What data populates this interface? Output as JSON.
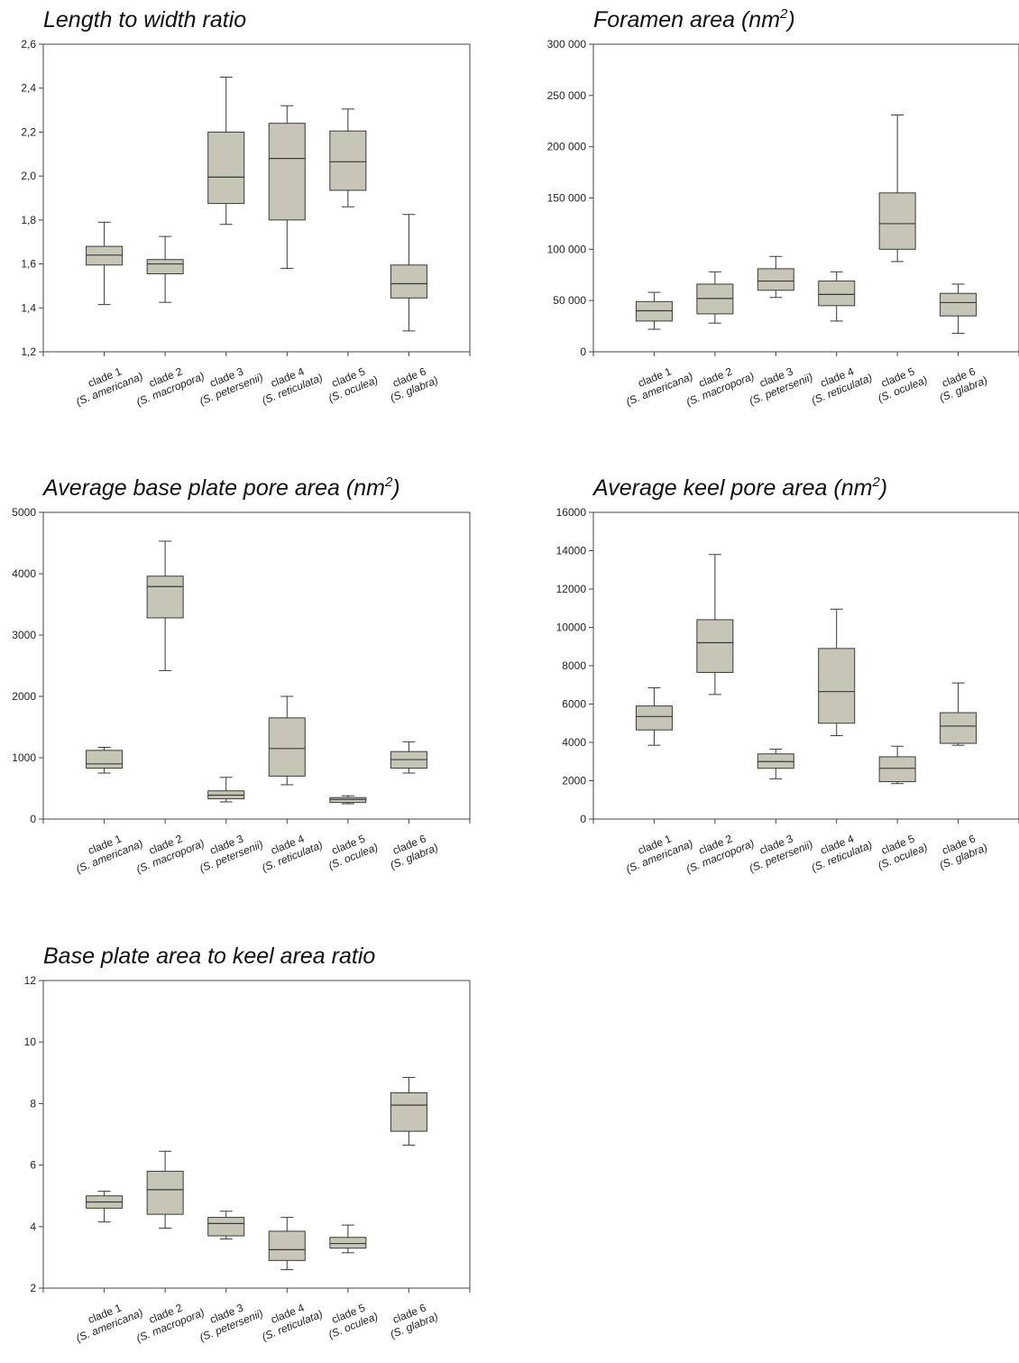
{
  "chart_data": [
    {
      "type": "box",
      "title": "Length to width ratio",
      "title_sup": "",
      "ylim": [
        1.2,
        2.6
      ],
      "yticks": [
        1.2,
        1.4,
        1.6,
        1.8,
        2.0,
        2.2,
        2.4,
        2.6
      ],
      "ytick_labels": [
        "1,2",
        "1,4",
        "1,6",
        "1,8",
        "2,0",
        "2,2",
        "2,4",
        "2,6"
      ],
      "categories": [
        {
          "clade": "clade 1",
          "species": "(S. americana)"
        },
        {
          "clade": "clade 2",
          "species": "(S. macropora)"
        },
        {
          "clade": "clade 3",
          "species": "(S. petersenii)"
        },
        {
          "clade": "clade 4",
          "species": "(S. reticulata)"
        },
        {
          "clade": "clade 5",
          "species": "(S. oculea)"
        },
        {
          "clade": "clade 6",
          "species": "(S. glabra)"
        }
      ],
      "boxes": [
        {
          "min": 1.415,
          "q1": 1.595,
          "median": 1.64,
          "q3": 1.68,
          "max": 1.79
        },
        {
          "min": 1.425,
          "q1": 1.555,
          "median": 1.6,
          "q3": 1.62,
          "max": 1.725
        },
        {
          "min": 1.78,
          "q1": 1.875,
          "median": 1.995,
          "q3": 2.2,
          "max": 2.45
        },
        {
          "min": 1.58,
          "q1": 1.8,
          "median": 2.08,
          "q3": 2.24,
          "max": 2.32
        },
        {
          "min": 1.86,
          "q1": 1.935,
          "median": 2.065,
          "q3": 2.205,
          "max": 2.305
        },
        {
          "min": 1.295,
          "q1": 1.445,
          "median": 1.51,
          "q3": 1.595,
          "max": 1.825
        }
      ]
    },
    {
      "type": "box",
      "title": "Foramen area (nm",
      "title_sup": "2",
      "title_tail": ")",
      "ylim": [
        0,
        300000
      ],
      "yticks": [
        0,
        50000,
        100000,
        150000,
        200000,
        250000,
        300000
      ],
      "ytick_labels": [
        "0",
        "50 000",
        "100 000",
        "150 000",
        "200 000",
        "250 000",
        "300 000"
      ],
      "categories": [
        {
          "clade": "clade 1",
          "species": "(S. americana)"
        },
        {
          "clade": "clade 2",
          "species": "(S. macropora)"
        },
        {
          "clade": "clade 3",
          "species": "(S. petersenii)"
        },
        {
          "clade": "clade 4",
          "species": "(S. reticulata)"
        },
        {
          "clade": "clade 5",
          "species": "(S. oculea)"
        },
        {
          "clade": "clade 6",
          "species": "(S. glabra)"
        }
      ],
      "boxes": [
        {
          "min": 22000,
          "q1": 30000,
          "median": 40000,
          "q3": 49000,
          "max": 58000
        },
        {
          "min": 28000,
          "q1": 37000,
          "median": 52000,
          "q3": 66000,
          "max": 78000
        },
        {
          "min": 53000,
          "q1": 60000,
          "median": 69000,
          "q3": 81000,
          "max": 93000
        },
        {
          "min": 30000,
          "q1": 45000,
          "median": 56000,
          "q3": 69000,
          "max": 78000
        },
        {
          "min": 88000,
          "q1": 100000,
          "median": 125000,
          "q3": 155000,
          "max": 231000
        },
        {
          "min": 18000,
          "q1": 35000,
          "median": 48000,
          "q3": 57000,
          "max": 66000
        }
      ]
    },
    {
      "type": "box",
      "title": "Average base plate pore area (nm",
      "title_sup": "2",
      "title_tail": ")",
      "ylim": [
        0,
        5000
      ],
      "yticks": [
        0,
        1000,
        2000,
        3000,
        4000,
        5000
      ],
      "ytick_labels": [
        "0",
        "1000",
        "2000",
        "3000",
        "4000",
        "5000"
      ],
      "categories": [
        {
          "clade": "clade 1",
          "species": "(S. americana)"
        },
        {
          "clade": "clade 2",
          "species": "(S. macropora)"
        },
        {
          "clade": "clade 3",
          "species": "(S. petersenii)"
        },
        {
          "clade": "clade 4",
          "species": "(S. reticulata)"
        },
        {
          "clade": "clade 5",
          "species": "(S. oculea)"
        },
        {
          "clade": "clade 6",
          "species": "(S. glabra)"
        }
      ],
      "boxes": [
        {
          "min": 750,
          "q1": 830,
          "median": 900,
          "q3": 1120,
          "max": 1170
        },
        {
          "min": 2420,
          "q1": 3280,
          "median": 3790,
          "q3": 3960,
          "max": 4530
        },
        {
          "min": 280,
          "q1": 330,
          "median": 390,
          "q3": 460,
          "max": 680
        },
        {
          "min": 560,
          "q1": 700,
          "median": 1150,
          "q3": 1650,
          "max": 2000
        },
        {
          "min": 250,
          "q1": 270,
          "median": 320,
          "q3": 350,
          "max": 380
        },
        {
          "min": 750,
          "q1": 830,
          "median": 970,
          "q3": 1100,
          "max": 1260
        }
      ]
    },
    {
      "type": "box",
      "title": "Average keel pore area (nm",
      "title_sup": "2",
      "title_tail": ")",
      "ylim": [
        0,
        16000
      ],
      "yticks": [
        0,
        2000,
        4000,
        6000,
        8000,
        10000,
        12000,
        14000,
        16000
      ],
      "ytick_labels": [
        "0",
        "2000",
        "4000",
        "6000",
        "8000",
        "10000",
        "12000",
        "14000",
        "16000"
      ],
      "categories": [
        {
          "clade": "clade 1",
          "species": "(S. americana)"
        },
        {
          "clade": "clade 2",
          "species": "(S. macropora)"
        },
        {
          "clade": "clade 3",
          "species": "(S. petersenii)"
        },
        {
          "clade": "clade 4",
          "species": "(S. reticulata)"
        },
        {
          "clade": "clade 5",
          "species": "(S. oculea)"
        },
        {
          "clade": "clade 6",
          "species": "(S. glabra)"
        }
      ],
      "boxes": [
        {
          "min": 3850,
          "q1": 4650,
          "median": 5350,
          "q3": 5900,
          "max": 6850
        },
        {
          "min": 6500,
          "q1": 7650,
          "median": 9200,
          "q3": 10400,
          "max": 13800
        },
        {
          "min": 2100,
          "q1": 2650,
          "median": 3000,
          "q3": 3400,
          "max": 3650
        },
        {
          "min": 4350,
          "q1": 5000,
          "median": 6650,
          "q3": 8900,
          "max": 10950
        },
        {
          "min": 1850,
          "q1": 1950,
          "median": 2650,
          "q3": 3250,
          "max": 3800
        },
        {
          "min": 3850,
          "q1": 3950,
          "median": 4850,
          "q3": 5550,
          "max": 7100
        }
      ]
    },
    {
      "type": "box",
      "title": "Base plate area to keel area ratio",
      "title_sup": "",
      "ylim": [
        2,
        12
      ],
      "yticks": [
        2,
        4,
        6,
        8,
        10,
        12
      ],
      "ytick_labels": [
        "2",
        "4",
        "6",
        "8",
        "10",
        "12"
      ],
      "categories": [
        {
          "clade": "clade 1",
          "species": "(S. americana)"
        },
        {
          "clade": "clade 2",
          "species": "(S. macropora)"
        },
        {
          "clade": "clade 3",
          "species": "(S. petersenii)"
        },
        {
          "clade": "clade 4",
          "species": "(S. reticulata)"
        },
        {
          "clade": "clade 5",
          "species": "(S. oculea)"
        },
        {
          "clade": "clade 6",
          "species": "(S. glabra)"
        }
      ],
      "boxes": [
        {
          "min": 4.15,
          "q1": 4.6,
          "median": 4.8,
          "q3": 5.0,
          "max": 5.15
        },
        {
          "min": 3.95,
          "q1": 4.4,
          "median": 5.2,
          "q3": 5.8,
          "max": 6.45
        },
        {
          "min": 3.6,
          "q1": 3.7,
          "median": 4.1,
          "q3": 4.3,
          "max": 4.5
        },
        {
          "min": 2.6,
          "q1": 2.9,
          "median": 3.25,
          "q3": 3.85,
          "max": 4.3
        },
        {
          "min": 3.15,
          "q1": 3.3,
          "median": 3.45,
          "q3": 3.65,
          "max": 4.05
        },
        {
          "min": 6.65,
          "q1": 7.1,
          "median": 7.95,
          "q3": 8.35,
          "max": 8.85
        }
      ]
    }
  ]
}
